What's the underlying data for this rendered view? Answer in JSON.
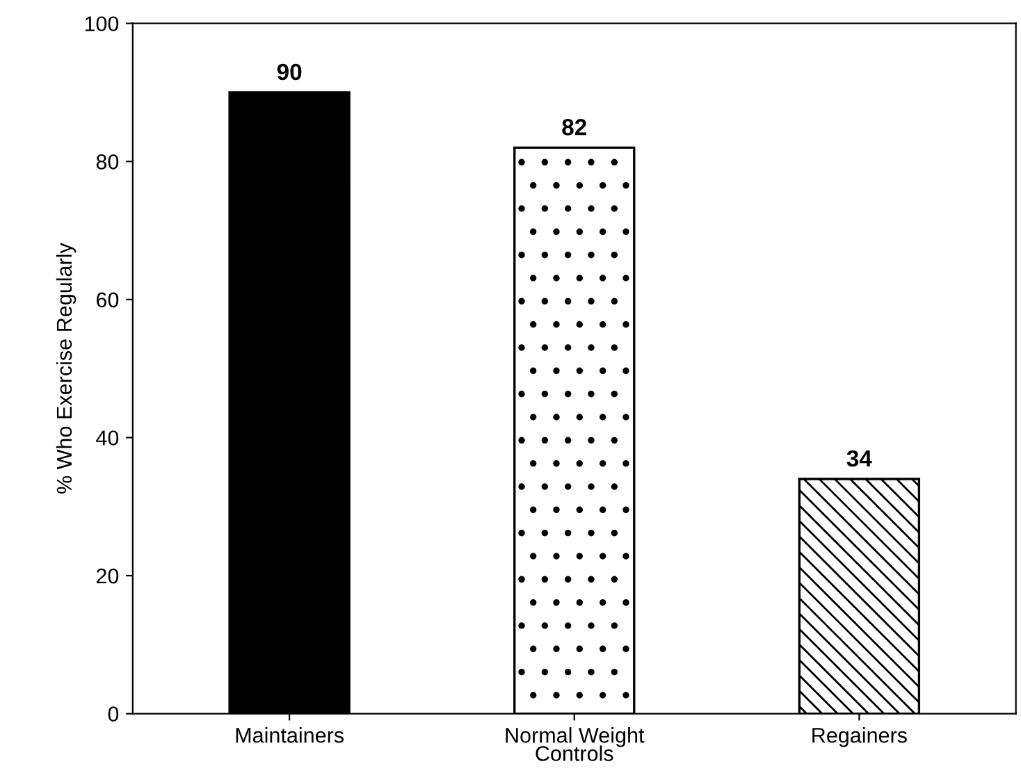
{
  "chart_data": {
    "type": "bar",
    "ylabel": "% Who Exercise Regularly",
    "categories": [
      "Maintainers",
      "Normal Weight\nControls",
      "Regainers"
    ],
    "values": [
      90,
      82,
      34
    ],
    "colors": [
      "#000000",
      "#ffffff",
      "#ffffff"
    ],
    "ylim": [
      0,
      100
    ],
    "yticks": [
      0,
      20,
      40,
      60,
      80,
      100
    ],
    "data_labels": true,
    "grid": false,
    "legend": false
  }
}
